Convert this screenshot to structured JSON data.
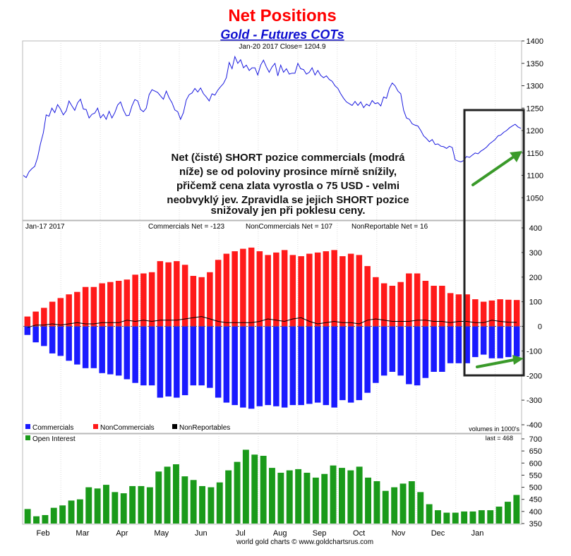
{
  "title": "Net Positions",
  "subtitle": "Gold - Futures COTs",
  "colors": {
    "title": "#ff0000",
    "subtitle": "#1010d0",
    "price_line": "#1a1adf",
    "commercials": "#1a1aff",
    "noncommercials": "#ff1a1a",
    "nonreportables": "#000000",
    "open_interest": "#1a9a1a",
    "arrow": "#3a9a2a",
    "highlight_box": "#222222"
  },
  "price_panel": {
    "header": "Jan-20  2017    Close= 1204.9",
    "annotation_lines": [
      "Net (čisté) SHORT pozice commercials (modrá",
      "níže) se od poloviny prosince mírně snížily,",
      "přičemž cena zlata vyrostla o 75 USD - velmi",
      "neobvyklý jev. Zpravidla se jejich SHORT pozice",
      "snižovaly jen při poklesu ceny."
    ]
  },
  "cot_panel": {
    "date_label": "Jan-17  2017",
    "commercials_net_label": "Commercials Net = -123",
    "noncommercials_net_label": "NonCommercials Net = 107",
    "nonreportable_net_label": "NonReportable Net = 16",
    "legend": [
      "Commercials",
      "NonCommercials",
      "NonReportables"
    ],
    "units_label": "volumes in 1000's"
  },
  "oi_panel": {
    "legend": "Open Interest",
    "last_label": "last = 468"
  },
  "x_axis_labels": [
    "Feb",
    "Mar",
    "Apr",
    "May",
    "Jun",
    "Jul",
    "Aug",
    "Sep",
    "Oct",
    "Nov",
    "Dec",
    "Jan"
  ],
  "footer": "world gold charts © www.goldchartsrus.com",
  "chart_data": [
    {
      "type": "line",
      "name": "Gold price",
      "ylim": [
        1000,
        1400
      ],
      "y_ticks": [
        1050,
        1100,
        1150,
        1200,
        1250,
        1300,
        1350,
        1400
      ],
      "values": [
        1100,
        1095,
        1108,
        1115,
        1120,
        1140,
        1170,
        1195,
        1235,
        1232,
        1250,
        1240,
        1258,
        1248,
        1235,
        1244,
        1266,
        1255,
        1245,
        1262,
        1270,
        1248,
        1247,
        1228,
        1236,
        1239,
        1250,
        1228,
        1236,
        1225,
        1243,
        1228,
        1240,
        1257,
        1264,
        1246,
        1233,
        1234,
        1255,
        1269,
        1266,
        1247,
        1242,
        1250,
        1280,
        1291,
        1288,
        1285,
        1277,
        1270,
        1288,
        1273,
        1262,
        1246,
        1242,
        1225,
        1240,
        1268,
        1280,
        1284,
        1294,
        1286,
        1295,
        1282,
        1275,
        1266,
        1282,
        1279,
        1290,
        1298,
        1305,
        1318,
        1352,
        1338,
        1365,
        1350,
        1358,
        1340,
        1346,
        1334,
        1340,
        1340,
        1324,
        1346,
        1357,
        1342,
        1330,
        1342,
        1350,
        1322,
        1346,
        1330,
        1338,
        1326,
        1328,
        1328,
        1350,
        1338,
        1336,
        1326,
        1330,
        1340,
        1324,
        1334,
        1323,
        1318,
        1322,
        1314,
        1310,
        1300,
        1294,
        1282,
        1272,
        1264,
        1260,
        1256,
        1265,
        1256,
        1264,
        1251,
        1259,
        1255,
        1267,
        1260,
        1262,
        1255,
        1275,
        1272,
        1294,
        1306,
        1300,
        1288,
        1282,
        1245,
        1228,
        1225,
        1215,
        1212,
        1210,
        1200,
        1188,
        1182,
        1175,
        1180,
        1169,
        1170,
        1165,
        1164,
        1160,
        1165,
        1162,
        1135,
        1132,
        1130,
        1133,
        1142,
        1140,
        1145,
        1150,
        1148,
        1154,
        1158,
        1163,
        1170,
        1175,
        1180,
        1188,
        1190,
        1196,
        1200,
        1206,
        1210,
        1214,
        1208,
        1204.9
      ]
    },
    {
      "type": "bar",
      "name": "COT net positions",
      "ylim": [
        -400,
        400
      ],
      "y_ticks": [
        -400,
        -300,
        -200,
        -100,
        0,
        100,
        200,
        300,
        400
      ],
      "series": [
        {
          "name": "Commercials",
          "values": [
            -35,
            -65,
            -80,
            -110,
            -120,
            -140,
            -155,
            -170,
            -170,
            -190,
            -195,
            -200,
            -215,
            -230,
            -240,
            -240,
            -290,
            -285,
            -290,
            -280,
            -240,
            -240,
            -250,
            -290,
            -310,
            -320,
            -330,
            -335,
            -325,
            -320,
            -325,
            -330,
            -320,
            -320,
            -315,
            -310,
            -320,
            -330,
            -300,
            -310,
            -300,
            -270,
            -230,
            -200,
            -185,
            -200,
            -235,
            -240,
            -210,
            -185,
            -185,
            -150,
            -150,
            -150,
            -125,
            -115,
            -130,
            -130,
            -125,
            -123
          ]
        },
        {
          "name": "NonCommercials",
          "values": [
            40,
            60,
            75,
            100,
            115,
            130,
            140,
            160,
            160,
            175,
            180,
            185,
            190,
            210,
            215,
            220,
            265,
            260,
            265,
            250,
            205,
            200,
            220,
            270,
            295,
            305,
            315,
            320,
            305,
            290,
            300,
            310,
            290,
            285,
            295,
            300,
            305,
            310,
            285,
            295,
            290,
            245,
            200,
            175,
            165,
            180,
            215,
            215,
            185,
            165,
            165,
            135,
            130,
            130,
            110,
            100,
            105,
            110,
            108,
            107
          ]
        },
        {
          "name": "NonReportables",
          "values": [
            -5,
            5,
            5,
            10,
            5,
            10,
            15,
            10,
            10,
            15,
            15,
            15,
            25,
            20,
            25,
            20,
            25,
            25,
            25,
            30,
            35,
            40,
            30,
            20,
            15,
            15,
            15,
            15,
            20,
            30,
            25,
            20,
            30,
            35,
            20,
            10,
            15,
            20,
            15,
            15,
            10,
            25,
            30,
            25,
            20,
            20,
            20,
            25,
            25,
            20,
            20,
            15,
            20,
            20,
            15,
            15,
            25,
            20,
            17,
            16
          ]
        }
      ]
    },
    {
      "type": "bar",
      "name": "Open Interest",
      "ylim": [
        350,
        700
      ],
      "y_ticks": [
        350,
        400,
        450,
        500,
        550,
        600,
        650,
        700
      ],
      "values": [
        410,
        380,
        385,
        415,
        425,
        445,
        450,
        500,
        495,
        510,
        480,
        475,
        505,
        505,
        500,
        565,
        585,
        595,
        545,
        530,
        505,
        500,
        520,
        570,
        605,
        655,
        635,
        630,
        580,
        560,
        570,
        575,
        560,
        540,
        555,
        590,
        580,
        570,
        585,
        540,
        525,
        485,
        500,
        515,
        525,
        480,
        430,
        405,
        395,
        395,
        400,
        400,
        405,
        405,
        420,
        440,
        468
      ]
    }
  ]
}
